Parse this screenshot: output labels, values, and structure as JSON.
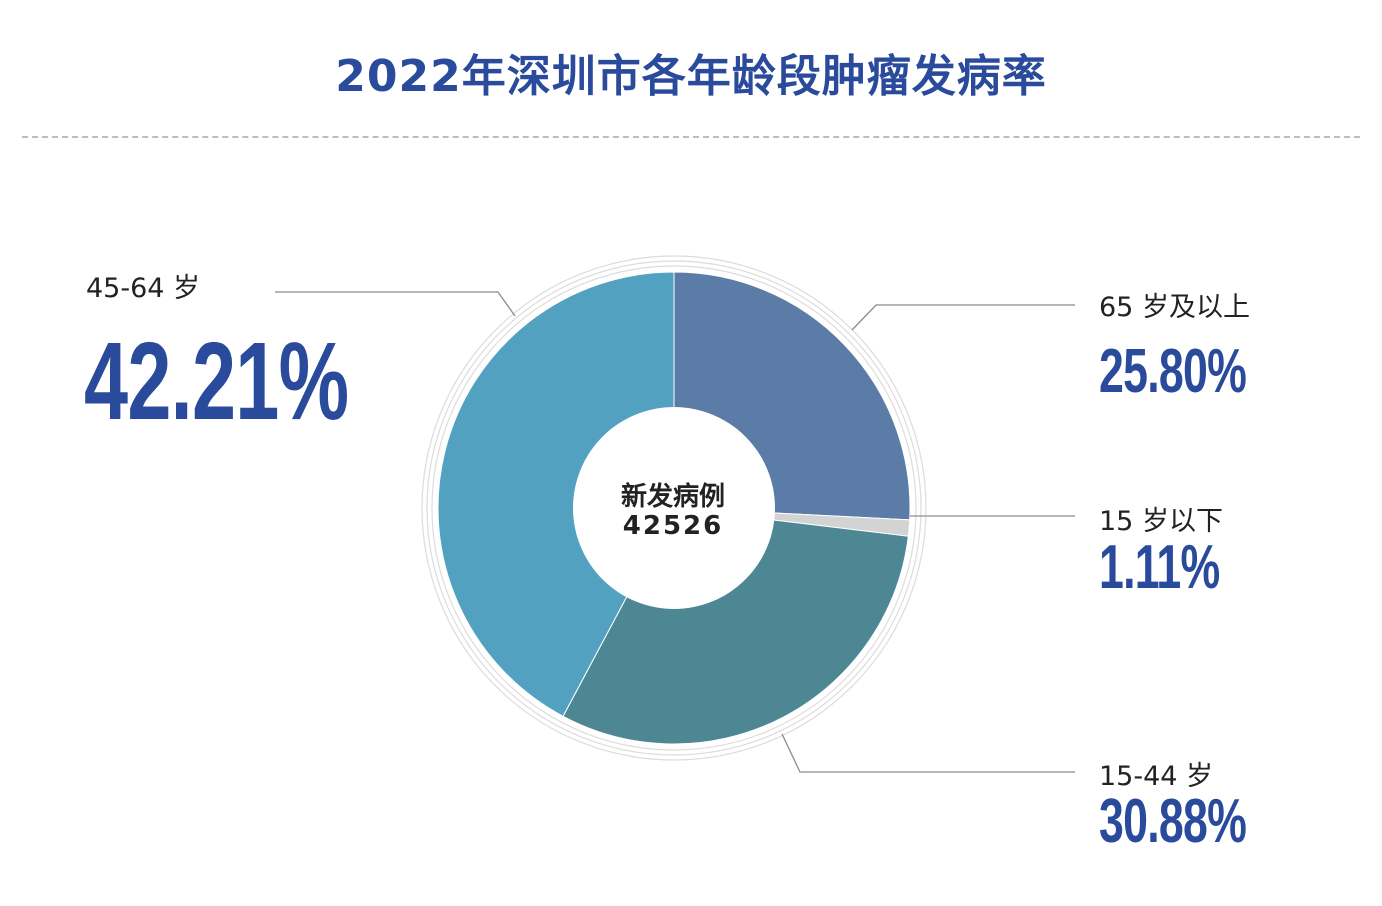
{
  "title": "2022年深圳市各年龄段肿瘤发病率",
  "center": {
    "label": "新发病例",
    "value": "42526"
  },
  "chart_data": {
    "type": "pie",
    "title": "2022年深圳市各年龄段肿瘤发病率",
    "categories": [
      "65 岁及以上",
      "15 岁以下",
      "15-44 岁",
      "45-64 岁"
    ],
    "values": [
      25.8,
      1.11,
      30.88,
      42.21
    ],
    "value_labels": [
      "25.80%",
      "1.11%",
      "30.88%",
      "42.21%"
    ],
    "colors": [
      "#5b7ca6",
      "#d3d3d3",
      "#4e8794",
      "#53a1c0"
    ],
    "donut": true,
    "center_label": "新发病例",
    "center_value": "42526"
  }
}
